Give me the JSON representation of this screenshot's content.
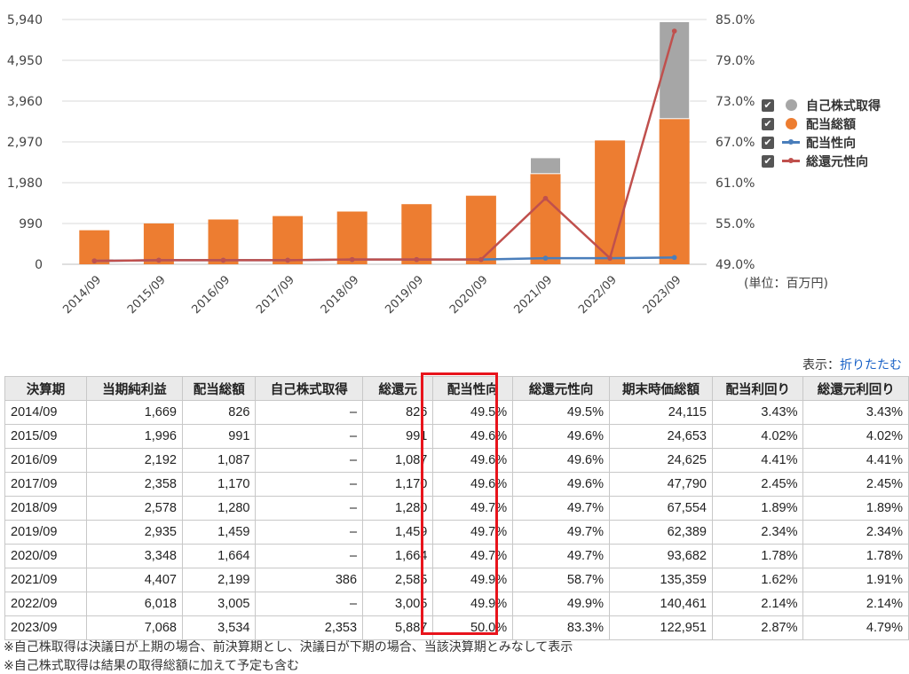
{
  "chart_data": {
    "type": "bar",
    "categories": [
      "2014/09",
      "2015/09",
      "2016/09",
      "2017/09",
      "2018/09",
      "2019/09",
      "2020/09",
      "2021/09",
      "2022/09",
      "2023/09"
    ],
    "y_left_ticks": [
      "0",
      "990",
      "1,980",
      "2,970",
      "3,960",
      "4,950",
      "5,940"
    ],
    "y_left_range": [
      0,
      5940
    ],
    "y_right_ticks": [
      "49.0%",
      "55.0%",
      "61.0%",
      "67.0%",
      "73.0%",
      "79.0%",
      "85.0%"
    ],
    "y_right_range": [
      49,
      85
    ],
    "series": [
      {
        "name": "自己株式取得",
        "kind": "bar-stacked",
        "color": "#a6a6a6",
        "values": [
          0,
          0,
          0,
          0,
          0,
          0,
          0,
          386,
          0,
          2353
        ]
      },
      {
        "name": "配当総額",
        "kind": "bar-stacked",
        "color": "#ed7d31",
        "values": [
          826,
          991,
          1087,
          1170,
          1280,
          1459,
          1664,
          2199,
          3005,
          3534
        ]
      },
      {
        "name": "配当性向",
        "kind": "line",
        "color": "#4a7ebb",
        "values": [
          49.5,
          49.6,
          49.6,
          49.6,
          49.7,
          49.7,
          49.7,
          49.9,
          49.9,
          50.0
        ]
      },
      {
        "name": "総還元性向",
        "kind": "line",
        "color": "#c0504d",
        "values": [
          49.5,
          49.6,
          49.6,
          49.6,
          49.7,
          49.7,
          49.7,
          58.7,
          49.9,
          83.3
        ]
      }
    ],
    "grid": true,
    "legend_position": "right",
    "unit_label": "(単位：百万円)"
  },
  "view_toggle": {
    "label": "表示：",
    "link": "折りたたむ"
  },
  "table": {
    "headers": [
      "決算期",
      "当期純利益",
      "配当総額",
      "自己株式取得",
      "総還元",
      "配当性向",
      "総還元性向",
      "期末時価総額",
      "配当利回り",
      "総還元利回り"
    ],
    "rows": [
      [
        "2014/09",
        "1,669",
        "826",
        "–",
        "826",
        "49.5%",
        "49.5%",
        "24,115",
        "3.43%",
        "3.43%"
      ],
      [
        "2015/09",
        "1,996",
        "991",
        "–",
        "991",
        "49.6%",
        "49.6%",
        "24,653",
        "4.02%",
        "4.02%"
      ],
      [
        "2016/09",
        "2,192",
        "1,087",
        "–",
        "1,087",
        "49.6%",
        "49.6%",
        "24,625",
        "4.41%",
        "4.41%"
      ],
      [
        "2017/09",
        "2,358",
        "1,170",
        "–",
        "1,170",
        "49.6%",
        "49.6%",
        "47,790",
        "2.45%",
        "2.45%"
      ],
      [
        "2018/09",
        "2,578",
        "1,280",
        "–",
        "1,280",
        "49.7%",
        "49.7%",
        "67,554",
        "1.89%",
        "1.89%"
      ],
      [
        "2019/09",
        "2,935",
        "1,459",
        "–",
        "1,459",
        "49.7%",
        "49.7%",
        "62,389",
        "2.34%",
        "2.34%"
      ],
      [
        "2020/09",
        "3,348",
        "1,664",
        "–",
        "1,664",
        "49.7%",
        "49.7%",
        "93,682",
        "1.78%",
        "1.78%"
      ],
      [
        "2021/09",
        "4,407",
        "2,199",
        "386",
        "2,585",
        "49.9%",
        "58.7%",
        "135,359",
        "1.62%",
        "1.91%"
      ],
      [
        "2022/09",
        "6,018",
        "3,005",
        "–",
        "3,005",
        "49.9%",
        "49.9%",
        "140,461",
        "2.14%",
        "2.14%"
      ],
      [
        "2023/09",
        "7,068",
        "3,534",
        "2,353",
        "5,887",
        "50.0%",
        "83.3%",
        "122,951",
        "2.87%",
        "4.79%"
      ]
    ],
    "highlight_column": "配当性向",
    "highlight_color": "#e8141c"
  },
  "notes": [
    "※自己株取得は決議日が上期の場合、前決算期とし、決議日が下期の場合、当該決算期とみなして表示",
    "※自己株式取得は結果の取得総額に加えて予定も含む"
  ]
}
